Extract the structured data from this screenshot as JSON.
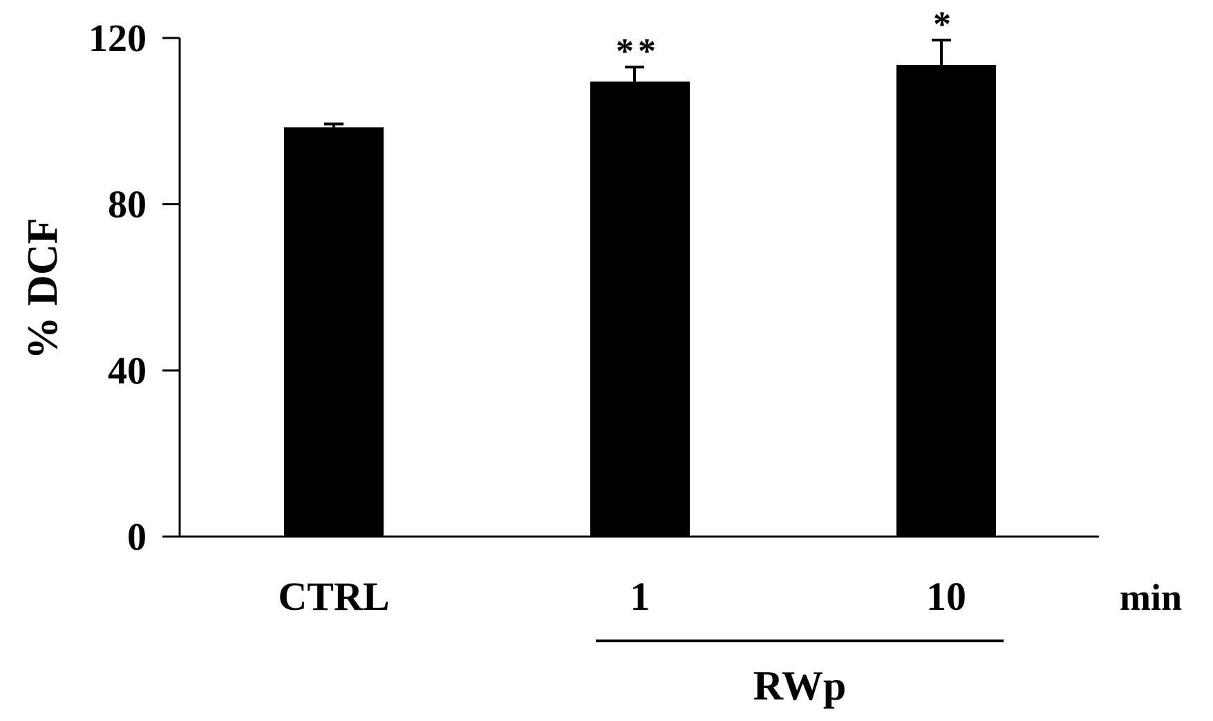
{
  "chart_data": {
    "type": "bar",
    "categories": [
      "CTRL",
      "1",
      "10"
    ],
    "values": [
      98.5,
      109.5,
      113.5
    ],
    "errors": [
      0.8,
      3.5,
      6.0
    ],
    "significance": [
      "",
      "**",
      "*"
    ],
    "ylabel": "% DCF",
    "ylim": [
      0,
      120
    ],
    "yticks": [
      "0",
      "40",
      "80",
      "120"
    ],
    "x_unit": "min",
    "group_label": "RWp",
    "grid": false,
    "legend": "none",
    "bar_color": "#000000"
  }
}
